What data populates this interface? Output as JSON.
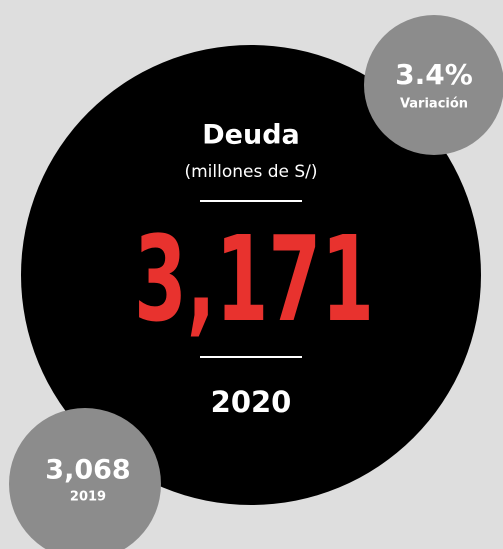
{
  "debt": {
    "title": "Deuda",
    "unit": "(millones de S/)",
    "value": "3,171",
    "year": "2020"
  },
  "variation": {
    "value": "3.4%",
    "label": "Variación"
  },
  "previous": {
    "value": "3,068",
    "year": "2019"
  }
}
